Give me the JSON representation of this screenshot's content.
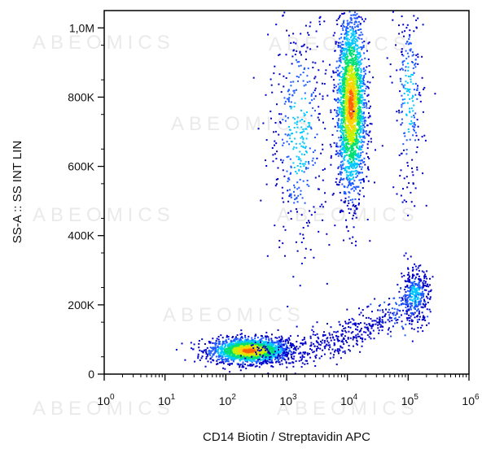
{
  "chart_data": {
    "type": "scatter",
    "subtype": "flow-cytometry density dot plot",
    "xlabel": "CD14 Biotin / Streptavidin APC",
    "ylabel": "SS-A :: SS INT LIN",
    "x_scale": "log",
    "xlim": [
      1,
      1000000
    ],
    "ylim": [
      0,
      1050000
    ],
    "x_ticks": [
      {
        "value": 1,
        "base": "10",
        "exp": "0"
      },
      {
        "value": 10,
        "base": "10",
        "exp": "1"
      },
      {
        "value": 100,
        "base": "10",
        "exp": "2"
      },
      {
        "value": 1000,
        "base": "10",
        "exp": "3"
      },
      {
        "value": 10000,
        "base": "10",
        "exp": "4"
      },
      {
        "value": 100000,
        "base": "10",
        "exp": "5"
      },
      {
        "value": 1000000,
        "base": "10",
        "exp": "6"
      }
    ],
    "y_ticks": [
      {
        "value": 0,
        "label": "0"
      },
      {
        "value": 200000,
        "label": "200K"
      },
      {
        "value": 400000,
        "label": "400K"
      },
      {
        "value": 600000,
        "label": "600K"
      },
      {
        "value": 800000,
        "label": "800K"
      },
      {
        "value": 1000000,
        "label": "1,0M"
      }
    ],
    "grid": false,
    "density_colors": [
      "#0000c8",
      "#1e5aff",
      "#00c8ff",
      "#00e070",
      "#c8f000",
      "#ffd000",
      "#ff6000"
    ],
    "populations": [
      {
        "x_log_center": 2.38,
        "y_center": 70000,
        "x_log_spread": 0.32,
        "y_spread": 18000,
        "share": 0.3
      },
      {
        "x_log_center": 4.05,
        "y_center": 780000,
        "x_log_spread": 0.12,
        "y_spread": 130000,
        "share": 0.36
      },
      {
        "x_log_center": 5.1,
        "y_center": 230000,
        "x_log_spread": 0.12,
        "y_spread": 40000,
        "share": 0.06
      },
      {
        "x_log_center": 3.2,
        "y_center": 700000,
        "x_log_spread": 0.25,
        "y_spread": 180000,
        "share": 0.07
      },
      {
        "x_log_center": 5.0,
        "y_center": 800000,
        "x_log_spread": 0.12,
        "y_spread": 150000,
        "share": 0.04
      }
    ],
    "watermark": "ABEOMICS"
  }
}
